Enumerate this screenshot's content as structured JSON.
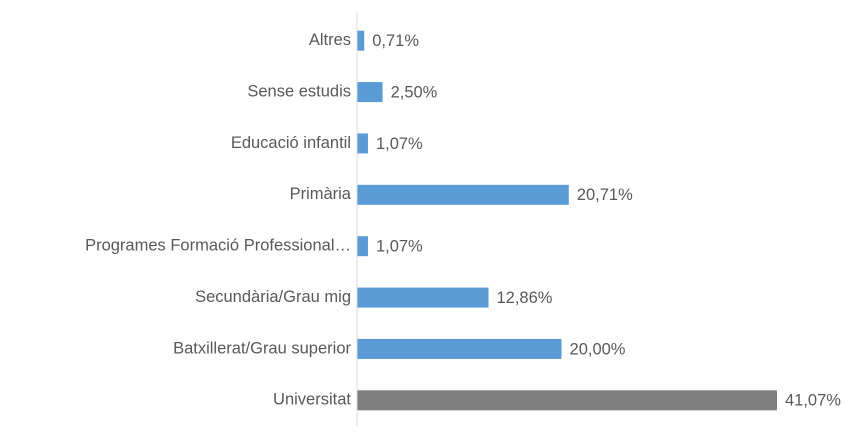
{
  "chart_data": {
    "type": "bar",
    "orientation": "horizontal",
    "categories": [
      "Altres",
      "Sense estudis",
      "Educació infantil",
      "Primària",
      "Programes Formació Professional…",
      "Secundària/Grau mig",
      "Batxillerat/Grau superior",
      "Universitat"
    ],
    "values": [
      0.71,
      2.5,
      1.07,
      20.71,
      1.07,
      12.86,
      20.0,
      41.07
    ],
    "value_labels": [
      "0,71%",
      "2,50%",
      "1,07%",
      "20,71%",
      "1,07%",
      "12,86%",
      "20,00%",
      "41,07%"
    ],
    "colors": [
      "#5b9bd5",
      "#5b9bd5",
      "#5b9bd5",
      "#5b9bd5",
      "#5b9bd5",
      "#5b9bd5",
      "#5b9bd5",
      "#7f7f7f"
    ]
  }
}
